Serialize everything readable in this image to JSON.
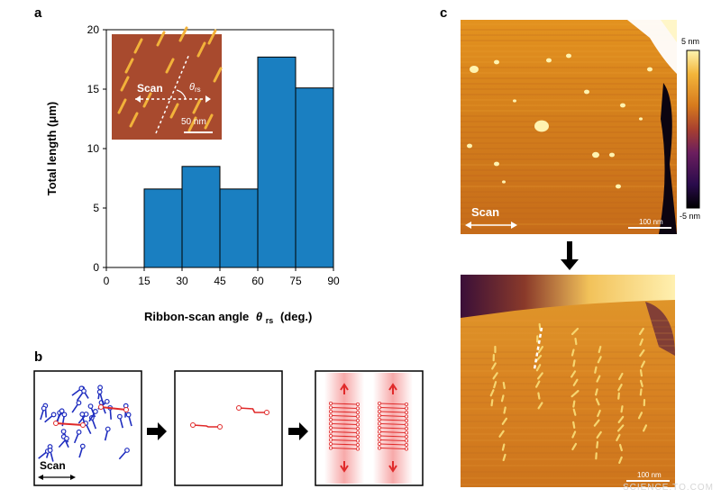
{
  "panels": {
    "a": "a",
    "b": "b",
    "c": "c"
  },
  "chart_data": {
    "type": "bar",
    "title": "",
    "xlabel": "Ribbon-scan angle",
    "xlabel_symbol": "θ",
    "xlabel_sub": "rs",
    "xlabel_unit": "(deg.)",
    "ylabel": "Total length (μm)",
    "bins": [
      [
        15,
        30
      ],
      [
        30,
        45
      ],
      [
        45,
        60
      ],
      [
        60,
        75
      ],
      [
        75,
        90
      ]
    ],
    "values": [
      6.6,
      8.5,
      6.6,
      17.7,
      15.1
    ],
    "xlim": [
      0,
      90
    ],
    "ylim": [
      0,
      20
    ],
    "xticks": [
      0,
      15,
      30,
      45,
      60,
      75,
      90
    ],
    "yticks": [
      0,
      5,
      10,
      15,
      20
    ],
    "bar_color": "#1a7fc1",
    "grid": false
  },
  "inset_a": {
    "scan_label": "Scan",
    "theta_symbol": "θ",
    "theta_sub": "rs",
    "scale_label": "50 nm",
    "bg_color": "#a84a2e",
    "ribbon_color": "#f2b23a"
  },
  "panel_b": {
    "scan_label": "Scan",
    "colors": {
      "molecule": "#1f2dbf",
      "selected": "#e02a2a",
      "band": "#f6b3b3"
    }
  },
  "panel_c": {
    "scan_label": "Scan",
    "scale_top": "100 nm",
    "scale_bottom": "100 nm",
    "colorbar_max": "5 nm",
    "colorbar_min": "-5 nm",
    "colormap": [
      "#000000",
      "#2a0b4c",
      "#6b1e5e",
      "#a8402f",
      "#d77a1d",
      "#f3b53a",
      "#fff4b0"
    ]
  },
  "watermark": "SCIENCE.TO.COM"
}
